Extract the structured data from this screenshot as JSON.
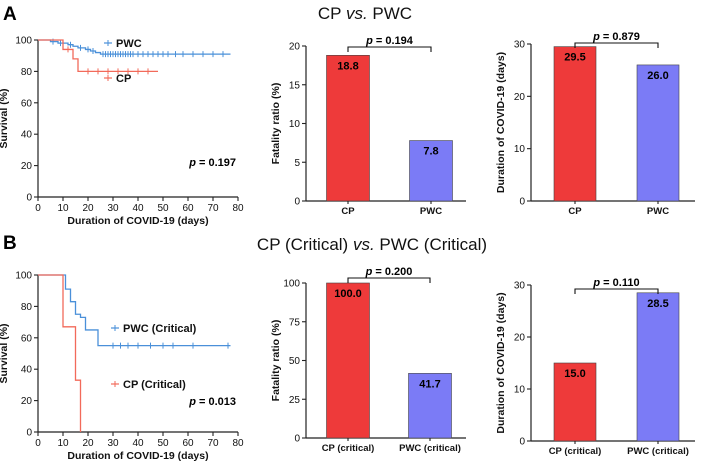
{
  "figure": {
    "panel_a": {
      "letter": "A",
      "title_pre": "CP ",
      "title_vs": "vs.",
      "title_post": " PWC"
    },
    "panel_b": {
      "letter": "B",
      "title_pre": "CP (Critical) ",
      "title_vs": "vs.",
      "title_post": " PWC (Critical)"
    },
    "p_label": "p",
    "p_eq": " = "
  },
  "colors": {
    "cp": "#ee3a3a",
    "pwc": "#7b7bf6",
    "cp_line": "#f26a5a",
    "pwc_line": "#4a90d9"
  },
  "chart_data": [
    {
      "id": "A-survival",
      "type": "line",
      "xlabel": "Duration of COVID-19 (days)",
      "ylabel": "Survival (%)",
      "xlim": [
        0,
        80
      ],
      "ylim": [
        0,
        100
      ],
      "xticks": [
        0,
        10,
        20,
        30,
        40,
        50,
        60,
        70,
        80
      ],
      "yticks": [
        0,
        20,
        40,
        60,
        80,
        100
      ],
      "p_value": "0.197",
      "series": [
        {
          "name": "PWC",
          "color": "#4a90d9",
          "x": [
            0,
            5,
            8,
            12,
            14,
            16,
            19,
            21,
            23,
            25,
            77
          ],
          "y": [
            100,
            99,
            98,
            97,
            96,
            95,
            94,
            93,
            92,
            91,
            91
          ],
          "censor_x": [
            6,
            9,
            13,
            17,
            20,
            22,
            26,
            27,
            28,
            29,
            30,
            31,
            32,
            33,
            34,
            35,
            36,
            37,
            38,
            40,
            42,
            44,
            46,
            48,
            50,
            52,
            55,
            58,
            62,
            66,
            70,
            74
          ]
        },
        {
          "name": "CP",
          "color": "#f26a5a",
          "x": [
            0,
            10,
            14,
            16,
            48
          ],
          "y": [
            100,
            94,
            88,
            80,
            80
          ],
          "censor_x": [
            12,
            20,
            24,
            28,
            32,
            36,
            40,
            44
          ]
        }
      ]
    },
    {
      "id": "A-fatality",
      "type": "bar",
      "categories": [
        "CP",
        "PWC"
      ],
      "values": [
        18.8,
        7.8
      ],
      "value_labels": [
        "18.8",
        "7.8"
      ],
      "ylabel": "Fatality ratio (%)",
      "ylim": [
        0,
        20
      ],
      "yticks": [
        0,
        5,
        10,
        15,
        20
      ],
      "p_value": "0.194"
    },
    {
      "id": "A-duration",
      "type": "bar",
      "categories": [
        "CP",
        "PWC"
      ],
      "values": [
        29.5,
        26.0
      ],
      "value_labels": [
        "29.5",
        "26.0"
      ],
      "ylabel": "Duration of COVID-19 (days)",
      "ylim": [
        0,
        30
      ],
      "yticks": [
        0,
        10,
        20,
        30
      ],
      "p_value": "0.879"
    },
    {
      "id": "B-survival",
      "type": "line",
      "xlabel": "Duration of COVID-19 (days)",
      "ylabel": "Survival (%)",
      "xlim": [
        0,
        80
      ],
      "ylim": [
        0,
        100
      ],
      "xticks": [
        0,
        10,
        20,
        30,
        40,
        50,
        60,
        70,
        80
      ],
      "yticks": [
        0,
        20,
        40,
        60,
        80,
        100
      ],
      "p_value": "0.013",
      "series": [
        {
          "name": "PWC (Critical)",
          "color": "#4a90d9",
          "x": [
            0,
            11,
            13,
            15,
            17,
            19,
            24,
            77
          ],
          "y": [
            100,
            91,
            83,
            75,
            73,
            65,
            55,
            55
          ],
          "censor_x": [
            30,
            33,
            36,
            40,
            45,
            50,
            54,
            62,
            76
          ]
        },
        {
          "name": "CP (Critical)",
          "color": "#f26a5a",
          "x": [
            0,
            10,
            15,
            17
          ],
          "y": [
            100,
            67,
            33,
            0
          ],
          "censor_x": []
        }
      ]
    },
    {
      "id": "B-fatality",
      "type": "bar",
      "categories": [
        "CP (critical)",
        "PWC (critical)"
      ],
      "values": [
        100.0,
        41.7
      ],
      "value_labels": [
        "100.0",
        "41.7"
      ],
      "ylabel": "Fatality ratio (%)",
      "ylim": [
        0,
        100
      ],
      "yticks": [
        0,
        25,
        50,
        75,
        100
      ],
      "p_value": "0.200"
    },
    {
      "id": "B-duration",
      "type": "bar",
      "categories": [
        "CP (critical)",
        "PWC (critical)"
      ],
      "values": [
        15.0,
        28.5
      ],
      "value_labels": [
        "15.0",
        "28.5"
      ],
      "ylabel": "Duration of COVID-19 (days)",
      "ylim": [
        0,
        30
      ],
      "yticks": [
        0,
        10,
        20,
        30
      ],
      "p_value": "0.110"
    }
  ]
}
